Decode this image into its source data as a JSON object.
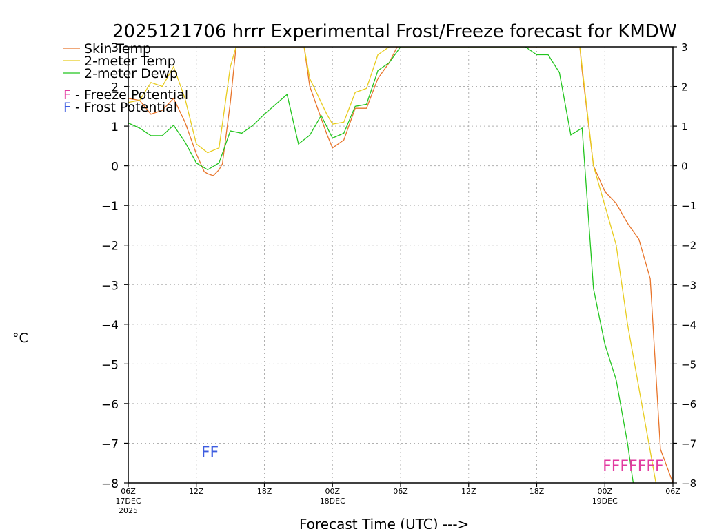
{
  "chart_data": {
    "type": "line",
    "title": "2025121706 hrrr Experimental Frost/Freeze forecast for KMDW",
    "ylabel": "°C",
    "xlabel": "Forecast Time (UTC) --->",
    "ylim": [
      -8,
      3
    ],
    "y_ticks": [
      3,
      2,
      1,
      0,
      -1,
      -2,
      -3,
      -4,
      -5,
      -6,
      -7,
      -8
    ],
    "x_hours": [
      0,
      48
    ],
    "x_ticks": [
      {
        "hour": 0,
        "label": "06Z",
        "sub": "17DEC",
        "sub2": "2025"
      },
      {
        "hour": 6,
        "label": "12Z",
        "sub": "",
        "sub2": ""
      },
      {
        "hour": 12,
        "label": "18Z",
        "sub": "",
        "sub2": ""
      },
      {
        "hour": 18,
        "label": "00Z",
        "sub": "18DEC",
        "sub2": ""
      },
      {
        "hour": 24,
        "label": "06Z",
        "sub": "",
        "sub2": ""
      },
      {
        "hour": 30,
        "label": "12Z",
        "sub": "",
        "sub2": ""
      },
      {
        "hour": 36,
        "label": "18Z",
        "sub": "",
        "sub2": ""
      },
      {
        "hour": 42,
        "label": "00Z",
        "sub": "19DEC",
        "sub2": ""
      },
      {
        "hour": 48,
        "label": "06Z",
        "sub": "",
        "sub2": ""
      }
    ],
    "series": [
      {
        "name": "Skin Temp",
        "color": "#e8742a",
        "points": [
          [
            0,
            1.7
          ],
          [
            1,
            1.65
          ],
          [
            2,
            1.3
          ],
          [
            3,
            1.4
          ],
          [
            4,
            1.7
          ],
          [
            5,
            1.1
          ],
          [
            6,
            0.3
          ],
          [
            6.7,
            -0.15
          ],
          [
            7,
            -0.2
          ],
          [
            7.5,
            -0.25
          ],
          [
            8,
            -0.1
          ],
          [
            8.3,
            0.05
          ],
          [
            9,
            1.6
          ],
          [
            9.5,
            3
          ],
          [
            15.5,
            3
          ],
          [
            16,
            2.0
          ],
          [
            16.5,
            1.6
          ],
          [
            17,
            1.2
          ],
          [
            17.5,
            0.8
          ],
          [
            18,
            0.45
          ],
          [
            18.5,
            0.55
          ],
          [
            19,
            0.65
          ],
          [
            20,
            1.45
          ],
          [
            21,
            1.45
          ],
          [
            22,
            2.2
          ],
          [
            23,
            2.6
          ],
          [
            23.7,
            3
          ],
          [
            39.8,
            3
          ],
          [
            40,
            2.4
          ],
          [
            41,
            0.0
          ],
          [
            42,
            -0.65
          ],
          [
            43,
            -0.95
          ],
          [
            44,
            -1.45
          ],
          [
            45,
            -1.85
          ],
          [
            46,
            -2.85
          ],
          [
            46.9,
            -7.15
          ],
          [
            48,
            -8.0
          ]
        ]
      },
      {
        "name": "2-meter Temp",
        "color": "#e8cc1e",
        "points": [
          [
            0,
            1.6
          ],
          [
            1,
            1.65
          ],
          [
            2,
            2.1
          ],
          [
            3,
            2.0
          ],
          [
            4,
            2.5
          ],
          [
            5,
            1.7
          ],
          [
            6,
            0.55
          ],
          [
            7,
            0.33
          ],
          [
            8,
            0.45
          ],
          [
            9,
            2.5
          ],
          [
            9.5,
            3
          ],
          [
            15.5,
            3
          ],
          [
            16,
            2.2
          ],
          [
            16.5,
            1.9
          ],
          [
            17,
            1.6
          ],
          [
            17.5,
            1.3
          ],
          [
            18,
            1.05
          ],
          [
            19,
            1.1
          ],
          [
            20,
            1.85
          ],
          [
            21,
            1.95
          ],
          [
            22,
            2.8
          ],
          [
            23,
            3
          ],
          [
            39.8,
            3
          ],
          [
            40,
            2.5
          ],
          [
            41,
            0.0
          ],
          [
            42,
            -1.0
          ],
          [
            43,
            -2.0
          ],
          [
            44,
            -4.0
          ],
          [
            45,
            -5.6
          ],
          [
            46,
            -7.2
          ],
          [
            46.5,
            -8.0
          ]
        ]
      },
      {
        "name": "2-meter Dewp",
        "color": "#22c51e",
        "points": [
          [
            0,
            1.08
          ],
          [
            1,
            0.95
          ],
          [
            2,
            0.76
          ],
          [
            3,
            0.76
          ],
          [
            4,
            1.02
          ],
          [
            5,
            0.6
          ],
          [
            6,
            0.07
          ],
          [
            7,
            -0.1
          ],
          [
            8,
            0.07
          ],
          [
            9,
            0.88
          ],
          [
            10,
            0.82
          ],
          [
            11,
            1.02
          ],
          [
            12,
            1.3
          ],
          [
            13,
            1.55
          ],
          [
            14,
            1.8
          ],
          [
            15,
            0.55
          ],
          [
            16,
            0.77
          ],
          [
            17,
            1.27
          ],
          [
            18,
            0.7
          ],
          [
            19,
            0.82
          ],
          [
            20,
            1.5
          ],
          [
            21,
            1.55
          ],
          [
            22,
            2.4
          ],
          [
            23,
            2.6
          ],
          [
            24,
            3
          ],
          [
            35,
            3
          ],
          [
            36,
            2.8
          ],
          [
            37,
            2.8
          ],
          [
            38,
            2.35
          ],
          [
            39,
            0.78
          ],
          [
            40,
            0.95
          ],
          [
            41,
            -3.1
          ],
          [
            42,
            -4.5
          ],
          [
            43,
            -5.4
          ],
          [
            44,
            -7.0
          ],
          [
            44.5,
            -8.0
          ]
        ]
      }
    ],
    "legend": {
      "position": "top-left",
      "entries": [
        {
          "name": "Skin Temp",
          "color": "#e8742a"
        },
        {
          "name": "2-meter Temp",
          "color": "#e8cc1e"
        },
        {
          "name": "2-meter Dewp",
          "color": "#22c51e"
        }
      ],
      "potentials": [
        {
          "letter": "F",
          "text": " - Freeze Potential",
          "color": "#e23aa0"
        },
        {
          "letter": "F",
          "text": " - Frost Potential",
          "color": "#3d5ce0"
        }
      ]
    },
    "markers": [
      {
        "type": "frost",
        "text": "FF",
        "color": "#3d5ce0",
        "hour": 7.2,
        "value": -7.2
      },
      {
        "type": "freeze",
        "text": "FFFFFFF",
        "color": "#e23aa0",
        "hour": 44.5,
        "value": -7.55
      }
    ]
  }
}
